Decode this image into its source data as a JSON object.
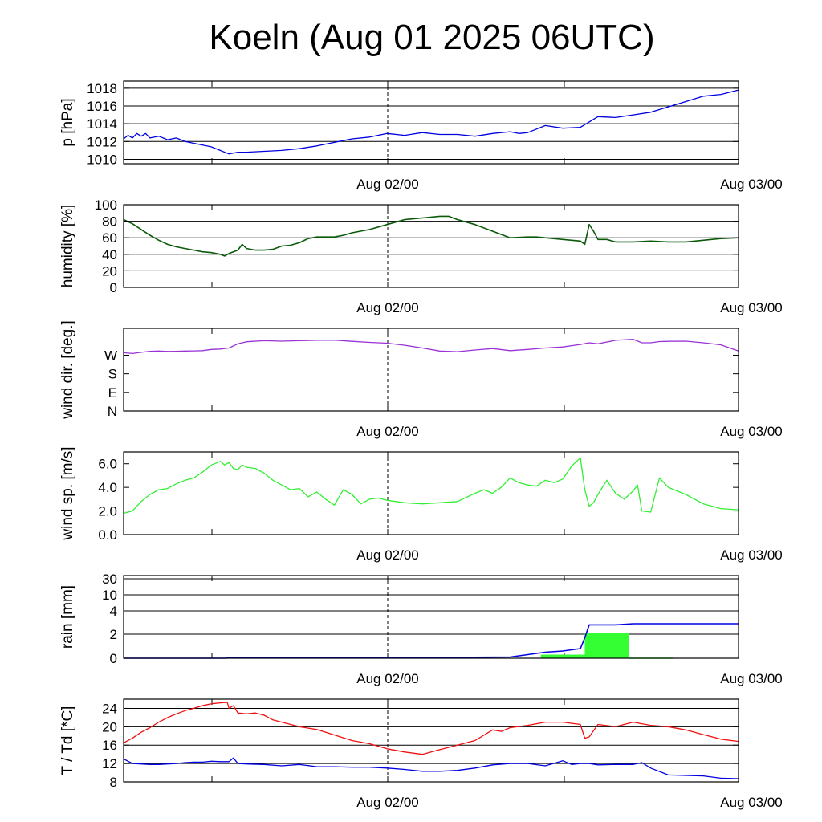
{
  "title": "Koeln (Aug 01 2025 06UTC)",
  "colors": {
    "pressure": "#0000e0",
    "humidity": "#0a5a0a",
    "wind_dir": "#9a33d6",
    "wind_speed": "#33ee33",
    "rain_total": "#0000e0",
    "rain_bars": "#33ff33",
    "temperature": "#ee1111",
    "dewpoint": "#0000e0"
  },
  "chart_data": [
    {
      "type": "line",
      "id": "pressure",
      "ylabel": "p [hPa]",
      "ylim": [
        1009.5,
        1018.8
      ],
      "yticks": [
        1010,
        1012,
        1014,
        1016,
        1018
      ],
      "ytick_labels": [
        "1010",
        "1012",
        "1014",
        "1016",
        "1018"
      ],
      "xtick_labels": [
        "Aug 02/00",
        "Aug 03/00"
      ],
      "grid": true,
      "x_hours": [
        0,
        0.5,
        1,
        1.5,
        2,
        2.5,
        3,
        4,
        5,
        6,
        7,
        8,
        9,
        10,
        11,
        12,
        13,
        14,
        16,
        18,
        20,
        22,
        24,
        26,
        28,
        30,
        32,
        34,
        36,
        38,
        40,
        42,
        44,
        45,
        46,
        47,
        48,
        50,
        52,
        54,
        56,
        58,
        60,
        62,
        64,
        66,
        68,
        70
      ],
      "values": [
        1012.3,
        1012.7,
        1012.4,
        1012.9,
        1012.6,
        1012.9,
        1012.4,
        1012.6,
        1012.2,
        1012.4,
        1012.0,
        1011.8,
        1011.6,
        1011.4,
        1011.0,
        1010.6,
        1010.8,
        1010.8,
        1010.9,
        1011.0,
        1011.2,
        1011.5,
        1011.9,
        1012.3,
        1012.5,
        1012.9,
        1012.7,
        1013.0,
        1012.8,
        1012.8,
        1012.6,
        1012.9,
        1013.1,
        1012.9,
        1013.0,
        1013.4,
        1013.8,
        1013.5,
        1013.6,
        1014.8,
        1014.7,
        1015.0,
        1015.3,
        1015.9,
        1016.5,
        1017.1,
        1017.3,
        1017.8
      ]
    },
    {
      "type": "line",
      "id": "humidity",
      "ylabel": "humidity [%]",
      "ylim": [
        0,
        100
      ],
      "yticks": [
        0,
        20,
        40,
        60,
        80,
        100
      ],
      "ytick_labels": [
        "0",
        "20",
        "40",
        "60",
        "80",
        "100"
      ],
      "xtick_labels": [
        "Aug 02/00",
        "Aug 03/00"
      ],
      "grid": true,
      "x_hours": [
        0,
        1,
        2,
        3,
        4,
        5,
        6,
        7,
        8,
        9,
        10,
        11,
        11.5,
        12,
        13,
        13.5,
        14,
        15,
        16,
        17,
        18,
        19,
        20,
        21,
        22,
        23,
        24,
        25,
        26,
        28,
        30,
        32,
        34,
        36,
        37,
        38,
        40,
        42,
        44,
        46,
        47,
        48,
        50,
        52,
        52.5,
        53,
        53.5,
        54,
        55,
        56,
        58,
        60,
        62,
        64,
        66,
        68,
        70
      ],
      "values": [
        82,
        77,
        70,
        63,
        57,
        52,
        49,
        47,
        45,
        43,
        42,
        40,
        38,
        41,
        45,
        52,
        47,
        45,
        45,
        46,
        50,
        51,
        54,
        59,
        61,
        61,
        61,
        63,
        66,
        70,
        76,
        82,
        84,
        86,
        86,
        82,
        76,
        68,
        60,
        61,
        61,
        60,
        58,
        56,
        52,
        76,
        68,
        58,
        58,
        55,
        55,
        56,
        55,
        55,
        57,
        59,
        60
      ]
    },
    {
      "type": "line",
      "id": "wind_direction",
      "ylabel": "wind dir. [deg.]",
      "ylim": [
        0,
        400
      ],
      "yticks": [
        0,
        90,
        180,
        270
      ],
      "ytick_labels": [
        "N",
        "E",
        "S",
        "W"
      ],
      "xtick_labels": [
        "Aug 02/00",
        "Aug 03/00"
      ],
      "grid": false,
      "x_hours": [
        0,
        1,
        2,
        3,
        4,
        5,
        6,
        7,
        8,
        9,
        10,
        11,
        12,
        13,
        14,
        16,
        18,
        20,
        22,
        24,
        26,
        28,
        30,
        32,
        34,
        36,
        38,
        40,
        42,
        44,
        46,
        48,
        50,
        52,
        53,
        54,
        56,
        58,
        59,
        60,
        61,
        62,
        64,
        66,
        68,
        70
      ],
      "values": [
        282,
        278,
        284,
        289,
        290,
        288,
        289,
        290,
        291,
        292,
        298,
        300,
        305,
        325,
        335,
        340,
        338,
        340,
        342,
        343,
        337,
        332,
        328,
        318,
        305,
        290,
        287,
        295,
        302,
        292,
        298,
        305,
        310,
        322,
        330,
        325,
        342,
        347,
        330,
        330,
        336,
        337,
        338,
        330,
        320,
        290
      ]
    },
    {
      "type": "line",
      "id": "wind_speed",
      "ylabel": "wind sp. [m/s]",
      "ylim": [
        0,
        7.0
      ],
      "yticks": [
        0,
        2,
        4,
        6
      ],
      "ytick_labels": [
        "0.0",
        "2.0",
        "4.0",
        "6.0"
      ],
      "xtick_labels": [
        "Aug 02/00",
        "Aug 03/00"
      ],
      "grid": false,
      "x_hours": [
        0,
        1,
        2,
        3,
        4,
        5,
        6,
        7,
        8,
        9,
        10,
        11,
        11.5,
        12,
        12.5,
        13,
        13.5,
        14,
        15,
        16,
        17,
        18,
        19,
        20,
        21,
        22,
        23,
        24,
        25,
        26,
        27,
        28,
        29,
        30,
        32,
        34,
        36,
        38,
        40,
        41,
        42,
        43,
        44,
        45,
        46,
        47,
        48,
        49,
        50,
        51,
        52,
        52.5,
        53,
        53.5,
        54,
        55,
        56,
        57,
        58,
        58.5,
        59,
        60,
        61,
        62,
        64,
        66,
        68,
        70
      ],
      "values": [
        1.8,
        2.0,
        2.8,
        3.4,
        3.8,
        3.9,
        4.3,
        4.6,
        4.8,
        5.3,
        5.9,
        6.2,
        5.9,
        6.1,
        5.6,
        5.5,
        5.9,
        5.7,
        5.6,
        5.2,
        4.6,
        4.2,
        3.8,
        3.9,
        3.2,
        3.6,
        3.0,
        2.5,
        3.8,
        3.4,
        2.6,
        3.0,
        3.1,
        2.9,
        2.7,
        2.6,
        2.7,
        2.8,
        3.5,
        3.8,
        3.5,
        4.0,
        4.8,
        4.4,
        4.2,
        4.1,
        4.6,
        4.4,
        4.7,
        5.8,
        6.5,
        3.8,
        2.4,
        2.7,
        3.4,
        4.6,
        3.5,
        3.0,
        3.7,
        4.2,
        2.0,
        1.9,
        4.8,
        4.0,
        3.4,
        2.6,
        2.2,
        2.1
      ]
    },
    {
      "type": "bar",
      "id": "rain",
      "ylabel": "rain [mm]",
      "scale": "piecewise: 0,2,4 linear; 4,10,30 compressed",
      "ylim": [
        0,
        30
      ],
      "yticks": [
        0,
        2,
        4,
        10,
        30
      ],
      "ytick_labels": [
        "0",
        "2",
        "4",
        "10",
        "30"
      ],
      "xtick_labels": [
        "Aug 02/00",
        "Aug 03/00"
      ],
      "grid": true,
      "bars": [
        {
          "x_start": 12,
          "x_end": 17.5,
          "value": 0.1
        },
        {
          "x_start": 47.5,
          "x_end": 52.5,
          "value": 0.3
        },
        {
          "x_start": 52.5,
          "x_end": 57.5,
          "value": 2.1
        },
        {
          "x_start": 57.5,
          "x_end": 62.5,
          "value": 0.05
        }
      ],
      "accumulated": {
        "x_hours": [
          0,
          11.5,
          12,
          17,
          24,
          40,
          44,
          46,
          48,
          50,
          52,
          52.5,
          53,
          54,
          56,
          58,
          60,
          62,
          64,
          70
        ],
        "values": [
          0,
          0,
          0.02,
          0.08,
          0.08,
          0.08,
          0.1,
          0.3,
          0.5,
          0.6,
          0.8,
          1.7,
          2.8,
          2.8,
          2.8,
          2.9,
          2.9,
          2.9,
          2.9,
          2.9
        ]
      }
    },
    {
      "type": "line",
      "id": "temperature_dewpoint",
      "ylabel": "T / Td [*C]",
      "ylim": [
        8,
        26
      ],
      "yticks": [
        8,
        12,
        16,
        20,
        24
      ],
      "ytick_labels": [
        "8",
        "12",
        "16",
        "20",
        "24"
      ],
      "xtick_labels": [
        "Aug 02/00",
        "Aug 03/00"
      ],
      "grid": true,
      "series": [
        {
          "id": "T",
          "x_hours": [
            0,
            1,
            2,
            3,
            4,
            5,
            6,
            7,
            8,
            9,
            10,
            11,
            11.8,
            12,
            12.5,
            13,
            14,
            15,
            16,
            17,
            18,
            20,
            22,
            24,
            26,
            28,
            30,
            32,
            34,
            36,
            38,
            40,
            42,
            43,
            44,
            46,
            48,
            50,
            52,
            52.5,
            53,
            54,
            56,
            58,
            60,
            62,
            64,
            66,
            68,
            70
          ],
          "values": [
            16.5,
            17.5,
            18.8,
            19.8,
            21.0,
            22.0,
            22.8,
            23.5,
            24.0,
            24.6,
            25.0,
            25.2,
            25.3,
            24.0,
            24.6,
            23.0,
            22.8,
            23.0,
            22.5,
            21.5,
            21.0,
            20.0,
            19.4,
            18.2,
            17.0,
            16.3,
            15.2,
            14.5,
            14.0,
            15.0,
            16.0,
            17.0,
            19.3,
            19.0,
            19.8,
            20.3,
            21.0,
            21.0,
            20.5,
            17.5,
            17.8,
            20.5,
            20.0,
            21.0,
            20.3,
            20.0,
            19.3,
            18.3,
            17.3,
            16.8
          ]
        },
        {
          "id": "Td",
          "x_hours": [
            0,
            1,
            2,
            3,
            4,
            5,
            6,
            7,
            8,
            9,
            10,
            11,
            12,
            12.5,
            13,
            14,
            16,
            18,
            20,
            22,
            24,
            26,
            28,
            30,
            32,
            34,
            36,
            38,
            40,
            42,
            44,
            46,
            48,
            50,
            51,
            52,
            53,
            54,
            56,
            58,
            59,
            60,
            62,
            64,
            66,
            68,
            70
          ],
          "values": [
            13.0,
            12.0,
            11.9,
            11.8,
            11.8,
            11.9,
            12.0,
            12.2,
            12.3,
            12.3,
            12.5,
            12.4,
            12.4,
            13.2,
            12.0,
            11.9,
            11.8,
            11.5,
            11.8,
            11.3,
            11.3,
            11.2,
            11.2,
            11.0,
            10.7,
            10.3,
            10.3,
            10.5,
            11.0,
            11.7,
            12.0,
            12.0,
            11.5,
            12.6,
            11.8,
            12.0,
            12.0,
            11.7,
            11.8,
            11.8,
            12.2,
            11.0,
            9.5,
            9.4,
            9.3,
            8.8,
            8.7
          ]
        }
      ]
    }
  ]
}
